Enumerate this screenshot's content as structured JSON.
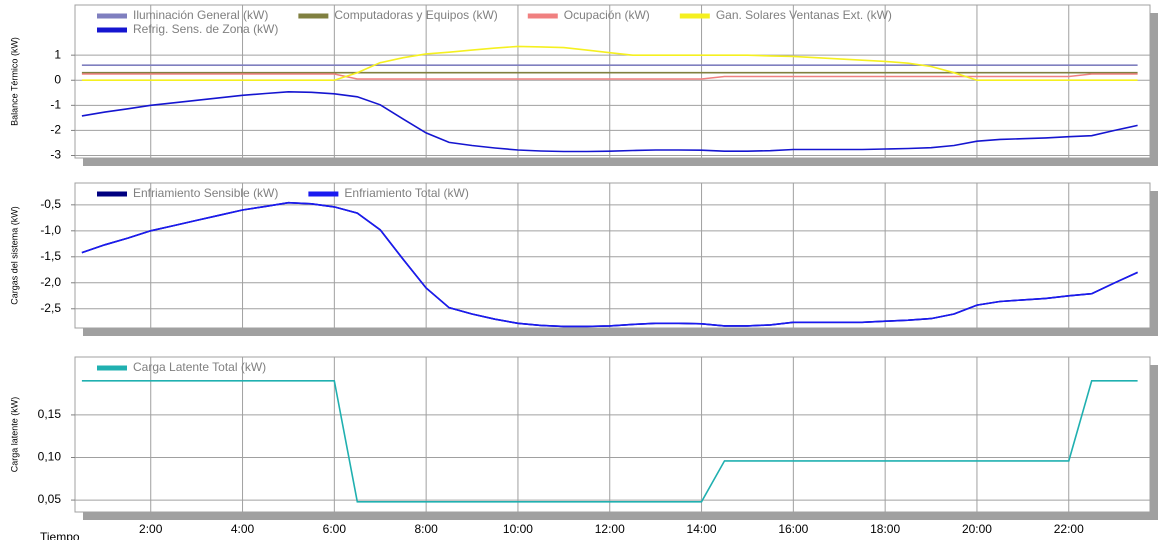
{
  "chart_data": [
    {
      "type": "line",
      "ylabel": "Balance Térmico (kW)",
      "x": [
        0.5,
        1,
        1.5,
        2,
        2.5,
        3,
        3.5,
        4,
        4.5,
        5,
        5.5,
        6,
        6.5,
        7,
        7.5,
        8,
        8.5,
        9,
        9.5,
        10,
        10.5,
        11,
        11.5,
        12,
        12.5,
        13,
        13.5,
        14,
        14.5,
        15,
        15.5,
        16,
        16.5,
        17,
        17.5,
        18,
        18.5,
        19,
        19.5,
        20,
        20.5,
        21,
        21.5,
        22,
        22.5,
        23,
        23.5
      ],
      "series": [
        {
          "name": "Iluminación General (kW)",
          "color": "#7f7fbf",
          "values": [
            0.6,
            0.6,
            0.6,
            0.6,
            0.6,
            0.6,
            0.6,
            0.6,
            0.6,
            0.6,
            0.6,
            0.6,
            0.6,
            0.6,
            0.6,
            0.6,
            0.6,
            0.6,
            0.6,
            0.6,
            0.6,
            0.6,
            0.6,
            0.6,
            0.6,
            0.6,
            0.6,
            0.6,
            0.6,
            0.6,
            0.6,
            0.6,
            0.6,
            0.6,
            0.6,
            0.6,
            0.6,
            0.6,
            0.6,
            0.6,
            0.6,
            0.6,
            0.6,
            0.6,
            0.6,
            0.6,
            0.6
          ]
        },
        {
          "name": "Computadoras y Equipos (kW)",
          "color": "#808040",
          "values": [
            0.3,
            0.3,
            0.3,
            0.3,
            0.3,
            0.3,
            0.3,
            0.3,
            0.3,
            0.3,
            0.3,
            0.3,
            0.3,
            0.3,
            0.3,
            0.3,
            0.3,
            0.3,
            0.3,
            0.3,
            0.3,
            0.3,
            0.3,
            0.3,
            0.3,
            0.3,
            0.3,
            0.3,
            0.3,
            0.3,
            0.3,
            0.3,
            0.3,
            0.3,
            0.3,
            0.3,
            0.3,
            0.3,
            0.3,
            0.3,
            0.3,
            0.3,
            0.3,
            0.3,
            0.3,
            0.3,
            0.3
          ]
        },
        {
          "name": "Ocupación (kW)",
          "color": "#f08080",
          "values": [
            0.25,
            0.25,
            0.25,
            0.25,
            0.25,
            0.25,
            0.25,
            0.25,
            0.25,
            0.25,
            0.25,
            0.25,
            0.05,
            0.05,
            0.05,
            0.05,
            0.05,
            0.05,
            0.05,
            0.05,
            0.05,
            0.05,
            0.05,
            0.05,
            0.05,
            0.05,
            0.05,
            0.05,
            0.15,
            0.15,
            0.15,
            0.15,
            0.15,
            0.15,
            0.15,
            0.15,
            0.15,
            0.15,
            0.15,
            0.15,
            0.15,
            0.15,
            0.15,
            0.15,
            0.25,
            0.25,
            0.25
          ]
        },
        {
          "name": "Gan. Solares Ventanas Ext. (kW)",
          "color": "#f5f020",
          "values": [
            0,
            0,
            0,
            0,
            0,
            0,
            0,
            0,
            0,
            0,
            0,
            0,
            0.3,
            0.7,
            0.9,
            1.05,
            1.12,
            1.2,
            1.28,
            1.35,
            1.33,
            1.3,
            1.2,
            1.1,
            1.0,
            1.0,
            1.0,
            1.0,
            1.0,
            1.0,
            0.97,
            0.95,
            0.9,
            0.85,
            0.8,
            0.75,
            0.68,
            0.55,
            0.3,
            0,
            0,
            0,
            0,
            0,
            0,
            0,
            0
          ]
        },
        {
          "name": "Refrig. Sens. de Zona (kW)",
          "color": "#1515d0",
          "values": [
            -1.42,
            -1.27,
            -1.14,
            -1.0,
            -0.9,
            -0.8,
            -0.7,
            -0.6,
            -0.53,
            -0.46,
            -0.48,
            -0.54,
            -0.66,
            -0.98,
            -1.55,
            -2.1,
            -2.48,
            -2.6,
            -2.7,
            -2.78,
            -2.82,
            -2.84,
            -2.84,
            -2.83,
            -2.8,
            -2.78,
            -2.78,
            -2.79,
            -2.83,
            -2.83,
            -2.81,
            -2.76,
            -2.76,
            -2.76,
            -2.76,
            -2.74,
            -2.72,
            -2.69,
            -2.6,
            -2.43,
            -2.36,
            -2.33,
            -2.3,
            -2.25,
            -2.21,
            -2.0,
            -1.8
          ]
        }
      ],
      "xlim": [
        0.35,
        23.77
      ],
      "xticks": [
        2,
        4,
        6,
        8,
        10,
        12,
        14,
        16,
        18,
        20,
        22
      ],
      "ylim": [
        -3.1,
        3
      ],
      "yticks": [
        -3,
        -2,
        -1,
        0,
        1
      ],
      "grid": true
    },
    {
      "type": "line",
      "ylabel": "Cargas del sistema (kW)",
      "x": [
        0.5,
        1,
        1.5,
        2,
        2.5,
        3,
        3.5,
        4,
        4.5,
        5,
        5.5,
        6,
        6.5,
        7,
        7.5,
        8,
        8.5,
        9,
        9.5,
        10,
        10.5,
        11,
        11.5,
        12,
        12.5,
        13,
        13.5,
        14,
        14.5,
        15,
        15.5,
        16,
        16.5,
        17,
        17.5,
        18,
        18.5,
        19,
        19.5,
        20,
        20.5,
        21,
        21.5,
        22,
        22.5,
        23,
        23.5
      ],
      "series": [
        {
          "name": "Enfriamiento Sensible (kW)",
          "color": "#000080",
          "values": [
            -1.42,
            -1.27,
            -1.14,
            -1.0,
            -0.9,
            -0.8,
            -0.7,
            -0.6,
            -0.53,
            -0.46,
            -0.48,
            -0.54,
            -0.66,
            -0.98,
            -1.55,
            -2.1,
            -2.48,
            -2.6,
            -2.7,
            -2.78,
            -2.82,
            -2.84,
            -2.84,
            -2.83,
            -2.8,
            -2.78,
            -2.78,
            -2.79,
            -2.83,
            -2.83,
            -2.81,
            -2.76,
            -2.76,
            -2.76,
            -2.76,
            -2.74,
            -2.72,
            -2.69,
            -2.6,
            -2.43,
            -2.36,
            -2.33,
            -2.3,
            -2.25,
            -2.21,
            -2.0,
            -1.8
          ]
        },
        {
          "name": "Enfriamiento Total (kW)",
          "color": "#1a1af0",
          "values": [
            -1.42,
            -1.27,
            -1.14,
            -1.0,
            -0.9,
            -0.8,
            -0.7,
            -0.6,
            -0.53,
            -0.46,
            -0.48,
            -0.54,
            -0.66,
            -0.98,
            -1.55,
            -2.1,
            -2.48,
            -2.6,
            -2.7,
            -2.78,
            -2.82,
            -2.84,
            -2.84,
            -2.83,
            -2.8,
            -2.78,
            -2.78,
            -2.79,
            -2.83,
            -2.83,
            -2.81,
            -2.76,
            -2.76,
            -2.76,
            -2.76,
            -2.74,
            -2.72,
            -2.69,
            -2.6,
            -2.43,
            -2.36,
            -2.33,
            -2.3,
            -2.25,
            -2.21,
            -2.0,
            -1.8
          ]
        }
      ],
      "xlim": [
        0.35,
        23.77
      ],
      "xticks": [
        2,
        4,
        6,
        8,
        10,
        12,
        14,
        16,
        18,
        20,
        22
      ],
      "ylim": [
        -2.87,
        -0.08
      ],
      "yticks": [
        {
          "value": -2.5,
          "label": "-2,5"
        },
        {
          "value": -2.0,
          "label": "-2,0"
        },
        {
          "value": -1.5,
          "label": "-1,5"
        },
        {
          "value": -1.0,
          "label": "-1,0"
        },
        {
          "value": -0.5,
          "label": "-0,5"
        }
      ],
      "grid": true
    },
    {
      "type": "line",
      "ylabel": "Carga latente (kW)",
      "xlabel": "Tiempo",
      "x": [
        0.5,
        1,
        1.5,
        2,
        2.5,
        3,
        3.5,
        4,
        4.5,
        5,
        5.5,
        6,
        6.5,
        7,
        7.5,
        8,
        8.5,
        9,
        9.5,
        10,
        10.5,
        11,
        11.5,
        12,
        12.5,
        13,
        13.5,
        14,
        14.5,
        15,
        15.5,
        16,
        16.5,
        17,
        17.5,
        18,
        18.5,
        19,
        19.5,
        20,
        20.5,
        21,
        21.5,
        22,
        22.5,
        23,
        23.5
      ],
      "series": [
        {
          "name": "Carga Latente Total (kW)",
          "color": "#20b0b0",
          "values": [
            0.19,
            0.19,
            0.19,
            0.19,
            0.19,
            0.19,
            0.19,
            0.19,
            0.19,
            0.19,
            0.19,
            0.19,
            0.048,
            0.048,
            0.048,
            0.048,
            0.048,
            0.048,
            0.048,
            0.048,
            0.048,
            0.048,
            0.048,
            0.048,
            0.048,
            0.048,
            0.048,
            0.048,
            0.096,
            0.096,
            0.096,
            0.096,
            0.096,
            0.096,
            0.096,
            0.096,
            0.096,
            0.096,
            0.096,
            0.096,
            0.096,
            0.096,
            0.096,
            0.096,
            0.19,
            0.19,
            0.19
          ]
        }
      ],
      "xlim": [
        0.35,
        23.77
      ],
      "xticks": [
        {
          "value": 2,
          "label": "2:00"
        },
        {
          "value": 4,
          "label": "4:00"
        },
        {
          "value": 6,
          "label": "6:00"
        },
        {
          "value": 8,
          "label": "8:00"
        },
        {
          "value": 10,
          "label": "10:00"
        },
        {
          "value": 12,
          "label": "12:00"
        },
        {
          "value": 14,
          "label": "14:00"
        },
        {
          "value": 16,
          "label": "16:00"
        },
        {
          "value": 18,
          "label": "18:00"
        },
        {
          "value": 20,
          "label": "20:00"
        },
        {
          "value": 22,
          "label": "22:00"
        }
      ],
      "ylim": [
        0.036,
        0.218
      ],
      "yticks": [
        {
          "value": 0.05,
          "label": "0,05"
        },
        {
          "value": 0.1,
          "label": "0,10"
        },
        {
          "value": 0.15,
          "label": "0,15"
        }
      ],
      "grid": true
    }
  ]
}
